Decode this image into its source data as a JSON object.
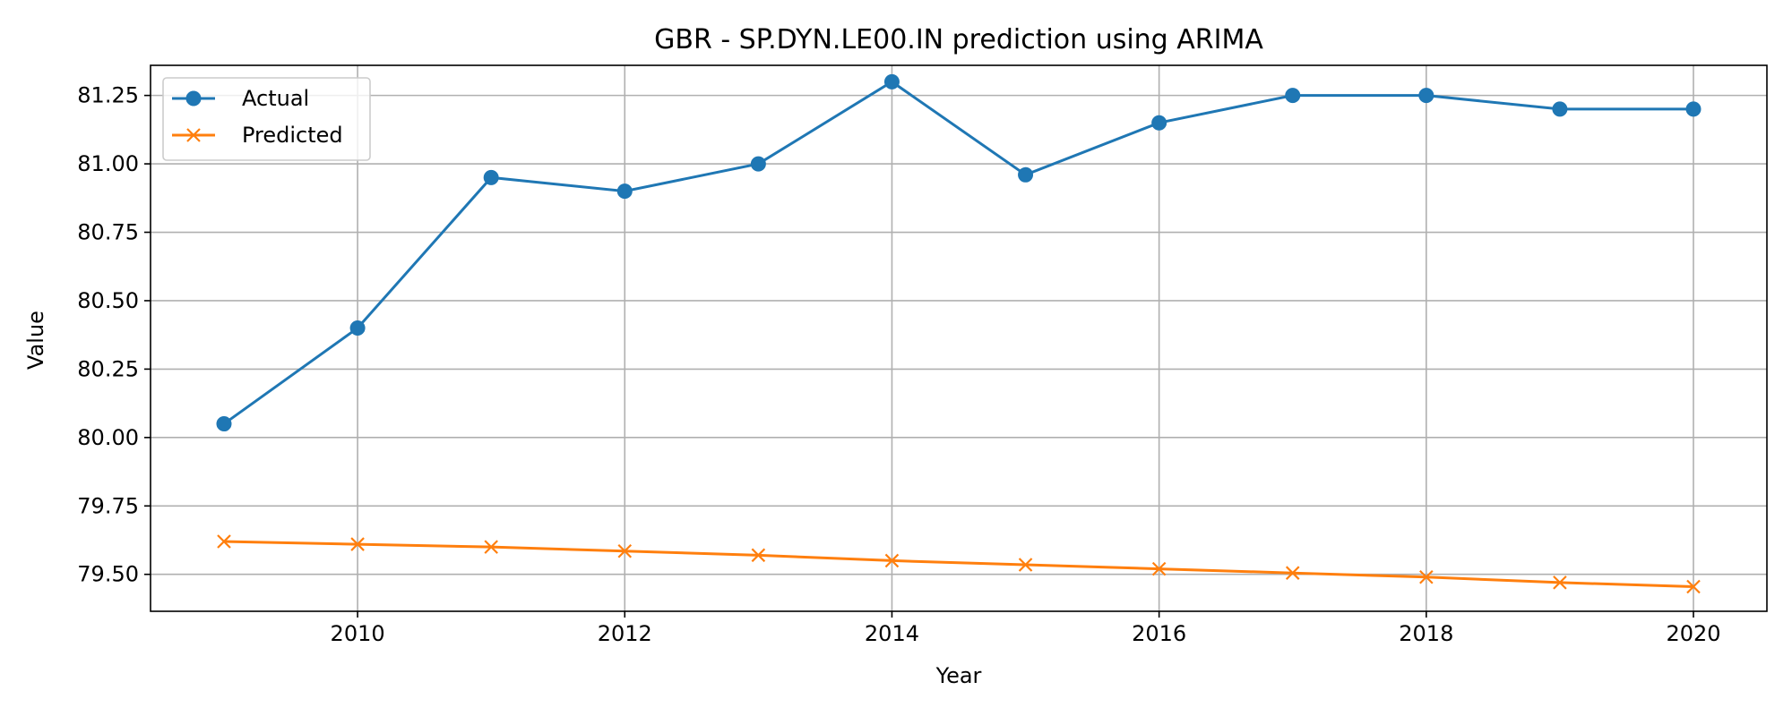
{
  "chart_data": {
    "type": "line",
    "title": "GBR - SP.DYN.LE00.IN prediction using ARIMA",
    "xlabel": "Year",
    "ylabel": "Value",
    "x": [
      2009,
      2010,
      2011,
      2012,
      2013,
      2014,
      2015,
      2016,
      2017,
      2018,
      2019,
      2020
    ],
    "xlim": [
      2008.45,
      2020.55
    ],
    "ylim": [
      79.365,
      81.36
    ],
    "xticks": [
      2010,
      2012,
      2014,
      2016,
      2018,
      2020
    ],
    "yticks": [
      79.5,
      79.75,
      80.0,
      80.25,
      80.5,
      80.75,
      81.0,
      81.25
    ],
    "ytick_labels": [
      "79.50",
      "79.75",
      "80.00",
      "80.25",
      "80.50",
      "80.75",
      "81.00",
      "81.25"
    ],
    "grid": true,
    "legend_position": "top-left",
    "series": [
      {
        "name": "Actual",
        "marker": "circle",
        "color": "#1f77b4",
        "values": [
          80.05,
          80.4,
          80.95,
          80.9,
          81.0,
          81.3,
          80.96,
          81.15,
          81.25,
          81.25,
          81.2,
          81.2
        ]
      },
      {
        "name": "Predicted",
        "marker": "x",
        "color": "#ff7f0e",
        "values": [
          79.62,
          79.61,
          79.6,
          79.585,
          79.57,
          79.55,
          79.535,
          79.52,
          79.505,
          79.49,
          79.47,
          79.455
        ]
      }
    ]
  }
}
